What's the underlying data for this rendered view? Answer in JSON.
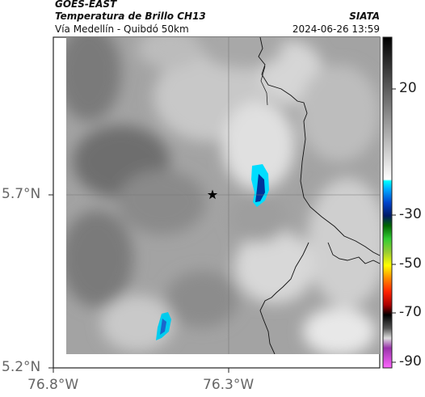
{
  "header": {
    "satellite": "GOES-EAST",
    "product": "Temperatura de Brillo CH13",
    "region": "Vía Medellín - Quibdó 50km",
    "source": "SIATA",
    "datetime": "2024-06-26 13:59"
  },
  "map": {
    "lat_labels": [
      "5.7°N",
      "5.2°N"
    ],
    "lon_labels": [
      "76.8°W",
      "76.3°W"
    ],
    "marker_icon": "star-icon"
  },
  "colorbar": {
    "tick_labels": [
      "20",
      "-30",
      "-50",
      "-70",
      "-90"
    ],
    "colors": {
      "gray_dark": "#1a1a1a",
      "gray_light": "#f2f2f2",
      "cyan": "#00ccff",
      "blue_dark": "#001a66",
      "green": "#33cc33",
      "yellow": "#ffff00",
      "red": "#ff2200",
      "black": "#000000",
      "magenta": "#cc33cc"
    }
  }
}
